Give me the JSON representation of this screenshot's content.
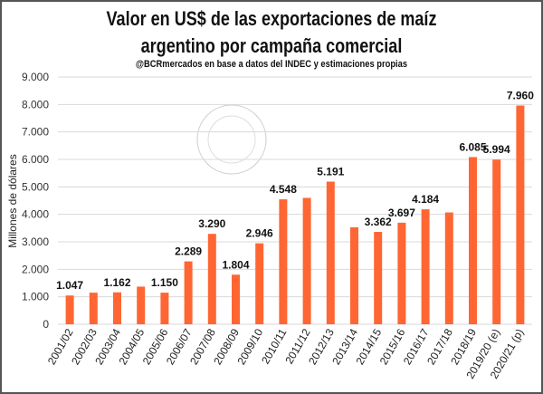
{
  "chart_data": {
    "type": "bar",
    "title": "Valor en US$ de las exportaciones de maíz argentino por campaña comercial",
    "title_lines": [
      "Valor en US$ de las exportaciones de maíz",
      "argentino por campaña comercial"
    ],
    "subtitle": "@BCRmercados en base a datos del INDEC y estimaciones propias",
    "xlabel": "",
    "ylabel": "Millones de dólares",
    "ylim": [
      0,
      9000
    ],
    "yticks": [
      "0",
      "1.000",
      "2.000",
      "3.000",
      "4.000",
      "5.000",
      "6.000",
      "7.000",
      "8.000",
      "9.000"
    ],
    "grid": true,
    "bar_color": "#FF6633",
    "watermark": "BOLSA DE COMERCIO DE ROSARIO",
    "categories": [
      "2001/02",
      "2002/03",
      "2003/04",
      "2004/05",
      "2005/06",
      "2006/07",
      "2007/08",
      "2008/09",
      "2009/10",
      "2010/11",
      "2011/12",
      "2012/13",
      "2013/14",
      "2014/15",
      "2015/16",
      "2016/17",
      "2017/18",
      "2018/19",
      "2019/20 (e)",
      "2020/21 (p)"
    ],
    "values": [
      1047,
      1150,
      1162,
      1370,
      1150,
      2289,
      3290,
      1804,
      2946,
      4548,
      4600,
      5191,
      3530,
      3362,
      3697,
      4184,
      4070,
      6085,
      5994,
      7960
    ],
    "data_labels": [
      "1.047",
      "",
      "1.162",
      "",
      "1.150",
      "2.289",
      "3.290",
      "1.804",
      "2.946",
      "4.548",
      "",
      "5.191",
      "",
      "3.362",
      "3.697",
      "4.184",
      "",
      "6.085",
      "5.994",
      "7.960"
    ]
  }
}
